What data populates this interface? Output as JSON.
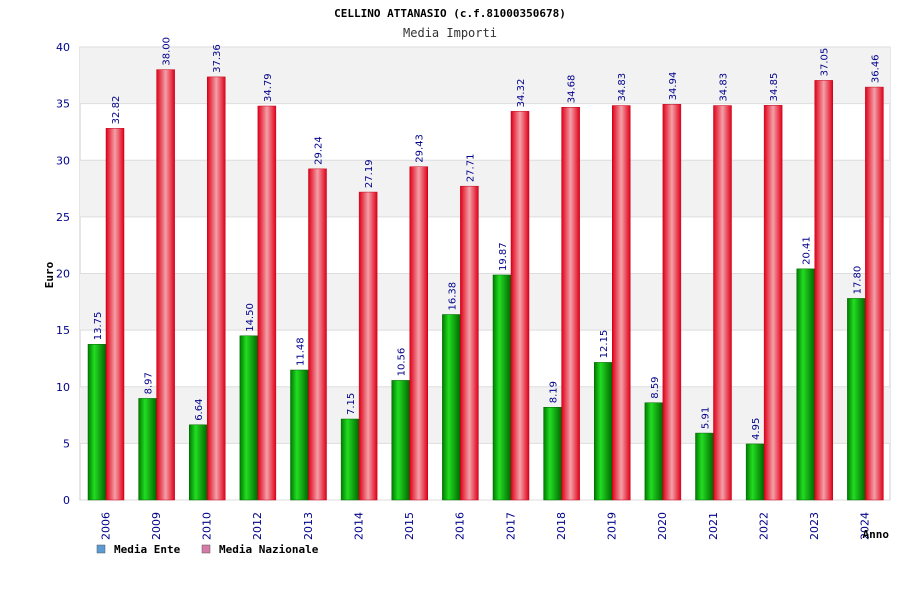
{
  "chart_data": {
    "type": "bar",
    "title": "CELLINO ATTANASIO (c.f.81000350678)",
    "subtitle": "Media Importi",
    "xlabel": "Anno",
    "ylabel": "Euro",
    "ylim": [
      0,
      40
    ],
    "yticks": [
      "0",
      "5",
      "10",
      "15",
      "20",
      "25",
      "30",
      "35",
      "40"
    ],
    "grid": true,
    "legend_position": "bottom-left",
    "categories": [
      "2006",
      "2009",
      "2010",
      "2012",
      "2013",
      "2014",
      "2015",
      "2016",
      "2017",
      "2018",
      "2019",
      "2020",
      "2021",
      "2022",
      "2023",
      "2024"
    ],
    "series": [
      {
        "name": "Media Ente",
        "color": "#00b400",
        "legend_color": "#5b9bd5",
        "values": [
          13.75,
          8.97,
          6.64,
          14.5,
          11.48,
          7.15,
          10.56,
          16.38,
          19.87,
          8.19,
          12.15,
          8.59,
          5.91,
          4.95,
          20.41,
          17.8
        ],
        "labels": [
          "13.75",
          "8.97",
          "6.64",
          "14.50",
          "11.48",
          "7.15",
          "10.56",
          "16.38",
          "19.87",
          "8.19",
          "12.15",
          "8.59",
          "5.91",
          "4.95",
          "20.41",
          "17.80"
        ]
      },
      {
        "name": "Media Nazionale",
        "color": "#e8102a",
        "legend_color": "#d67aa8",
        "values": [
          32.82,
          38.0,
          37.36,
          34.79,
          29.24,
          27.19,
          29.43,
          27.71,
          34.32,
          34.68,
          34.83,
          34.94,
          34.83,
          34.85,
          37.05,
          36.46
        ],
        "labels": [
          "32.82",
          "38.00",
          "37.36",
          "34.79",
          "29.24",
          "27.19",
          "29.43",
          "27.71",
          "34.32",
          "34.68",
          "34.83",
          "34.94",
          "34.83",
          "34.85",
          "37.05",
          "36.46"
        ]
      }
    ]
  }
}
